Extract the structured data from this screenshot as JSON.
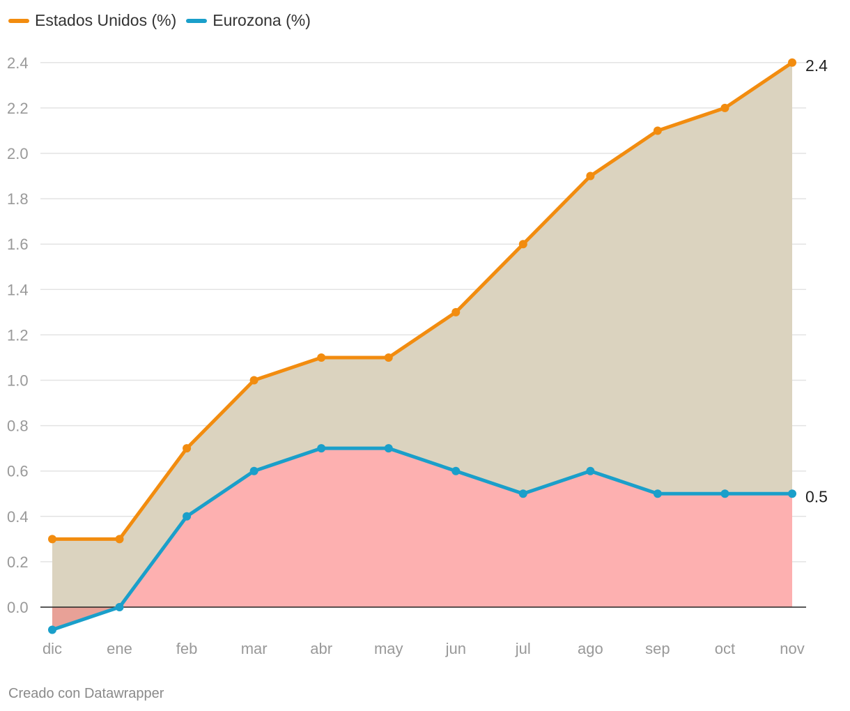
{
  "legend": {
    "us_label": "Estados Unidos (%)",
    "ez_label": "Eurozona (%)"
  },
  "footer": {
    "credit": "Creado con Datawrapper"
  },
  "colors": {
    "us_line": "#f28c0f",
    "ez_line": "#1a9fca",
    "us_area": "#dbd3bf",
    "ez_area": "#fdb0b0",
    "negative_area": "#e8a197",
    "grid": "#e3e3e3",
    "axis_text": "#999999"
  },
  "chart_data": {
    "type": "line",
    "categories": [
      "dic",
      "ene",
      "feb",
      "mar",
      "abr",
      "may",
      "jun",
      "jul",
      "ago",
      "sep",
      "oct",
      "nov"
    ],
    "series": [
      {
        "name": "Estados Unidos (%)",
        "values": [
          0.3,
          0.3,
          0.7,
          1.0,
          1.1,
          1.1,
          1.3,
          1.6,
          1.9,
          2.1,
          2.2,
          2.4
        ],
        "end_label": "2.4"
      },
      {
        "name": "Eurozona (%)",
        "values": [
          -0.1,
          0.0,
          0.4,
          0.6,
          0.7,
          0.7,
          0.6,
          0.5,
          0.6,
          0.5,
          0.5,
          0.5
        ],
        "end_label": "0.5"
      }
    ],
    "yticks": [
      "0.0",
      "0.2",
      "0.4",
      "0.6",
      "0.8",
      "1.0",
      "1.2",
      "1.4",
      "1.6",
      "1.8",
      "2.0",
      "2.2",
      "2.4"
    ],
    "ylim": [
      -0.1,
      2.4
    ],
    "grid": true,
    "legend_position": "top-left"
  }
}
